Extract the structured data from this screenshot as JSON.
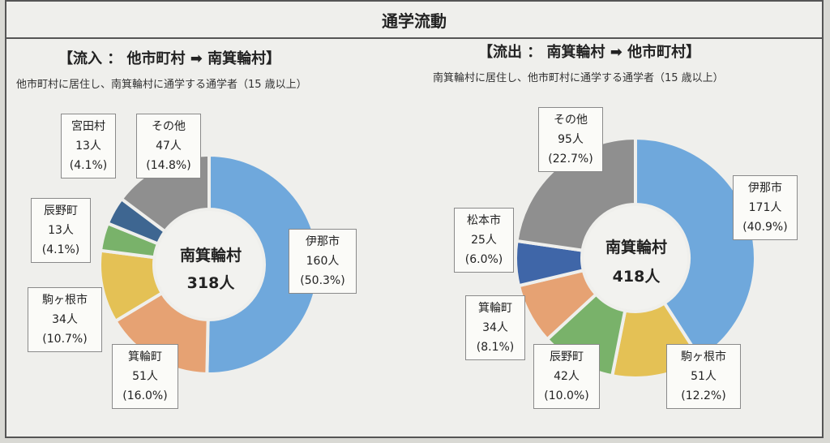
{
  "title": "通学流動",
  "colors": {
    "伊那市": "#6fa8dc",
    "箕輪町": "#e6a273",
    "駒ヶ根市": "#e4c155",
    "辰野町": "#79b26a",
    "宮田村": "#3e6691",
    "松本市": "#3f66a8",
    "その他": "#8f8f8f"
  },
  "chart_data": [
    {
      "type": "pie",
      "heading": "【流入 ： 他市町村 ➡ 南箕輪村】",
      "subtitle": "他市町村に居住し、南箕輪村に通学する通学者（15 歳以上）",
      "center_label": "南箕輪村",
      "total": "318人",
      "slices": [
        {
          "name": "伊那市",
          "value": 160,
          "count": "160人",
          "percent": "(50.3%)"
        },
        {
          "name": "箕輪町",
          "value": 51,
          "count": "51人",
          "percent": "(16.0%)"
        },
        {
          "name": "駒ヶ根市",
          "value": 34,
          "count": "34人",
          "percent": "(10.7%)"
        },
        {
          "name": "辰野町",
          "value": 13,
          "count": "13人",
          "percent": "(4.1%)"
        },
        {
          "name": "宮田村",
          "value": 13,
          "count": "13人",
          "percent": "(4.1%)"
        },
        {
          "name": "その他",
          "value": 47,
          "count": "47人",
          "percent": "(14.8%)"
        }
      ]
    },
    {
      "type": "pie",
      "heading": "【流出 ： 南箕輪村 ➡ 他市町村】",
      "subtitle": "南箕輪村に居住し、他市町村に通学する通学者（15 歳以上）",
      "center_label": "南箕輪村",
      "total": "418人",
      "slices": [
        {
          "name": "伊那市",
          "value": 171,
          "count": "171人",
          "percent": "(40.9%)"
        },
        {
          "name": "駒ヶ根市",
          "value": 51,
          "count": "51人",
          "percent": "(12.2%)"
        },
        {
          "name": "辰野町",
          "value": 42,
          "count": "42人",
          "percent": "(10.0%)"
        },
        {
          "name": "箕輪町",
          "value": 34,
          "count": "34人",
          "percent": "(8.1%)"
        },
        {
          "name": "松本市",
          "value": 25,
          "count": "25人",
          "percent": "(6.0%)"
        },
        {
          "name": "その他",
          "value": 95,
          "count": "95人",
          "percent": "(22.7%)"
        }
      ]
    }
  ]
}
